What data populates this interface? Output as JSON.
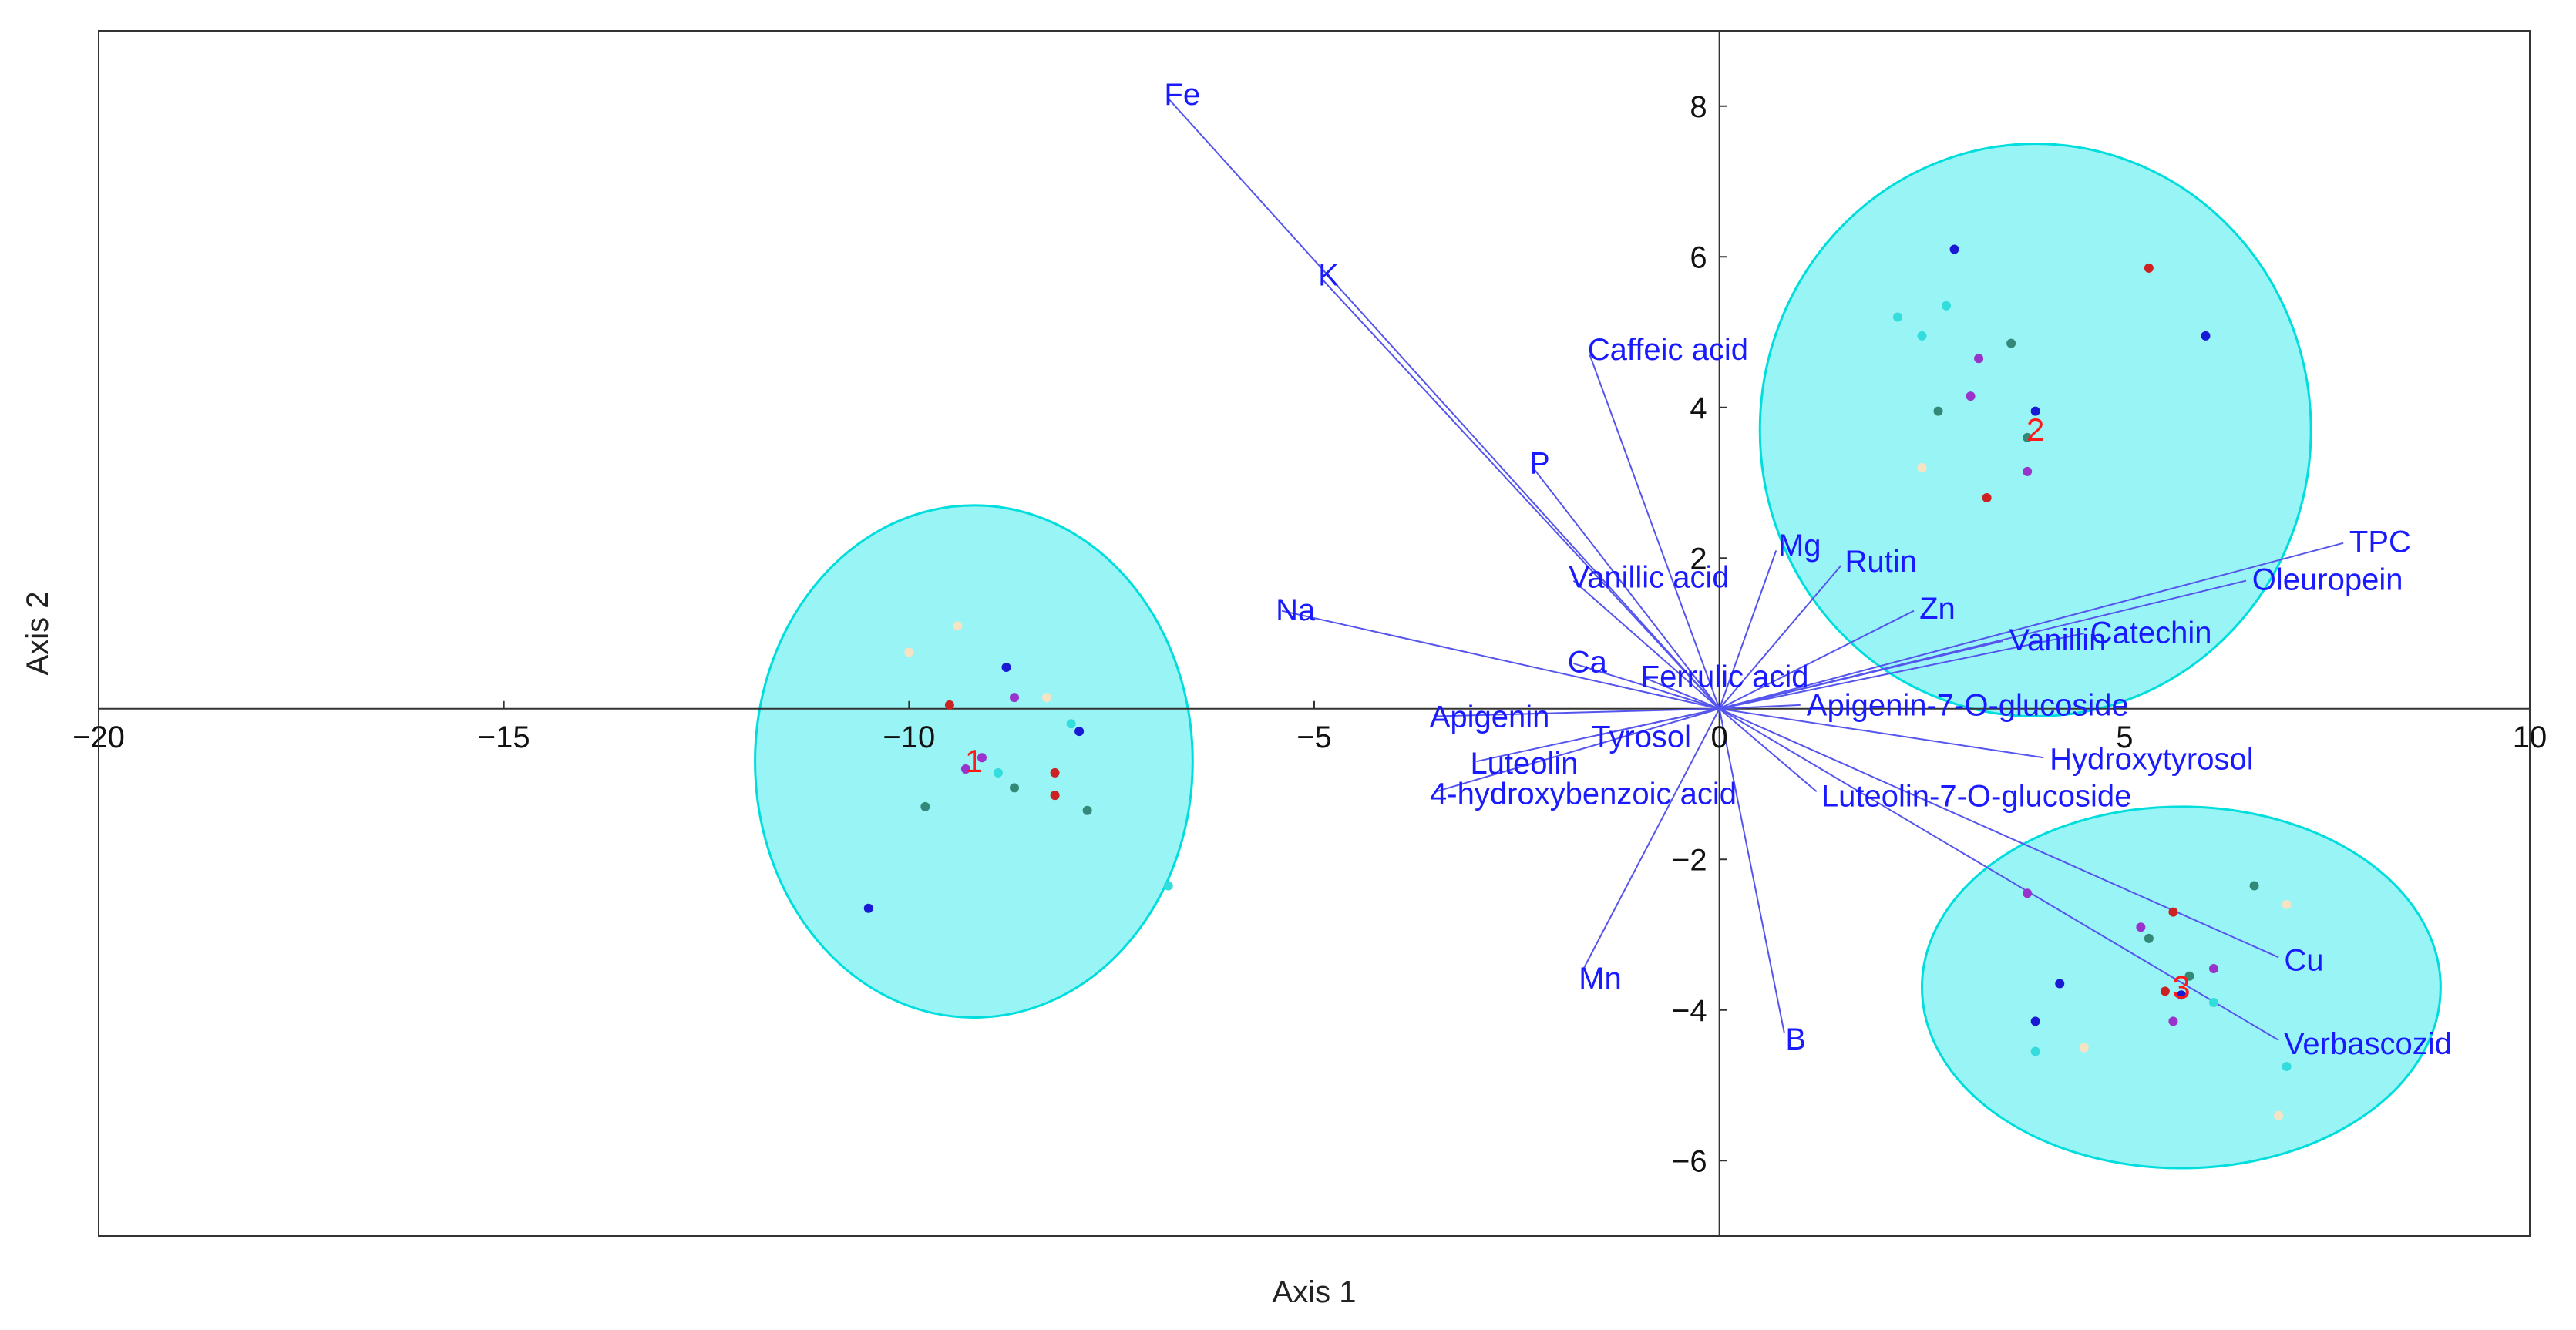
{
  "chart_data": {
    "type": "scatter",
    "subtype": "pca-biplot",
    "title": "",
    "xlabel": "Axis 1",
    "ylabel": "Axis 2",
    "xlim": [
      -20,
      10
    ],
    "ylim": [
      -7,
      9
    ],
    "xticks": [
      -20,
      -15,
      -10,
      -5,
      0,
      5,
      10
    ],
    "yticks": [
      -6,
      -4,
      -2,
      2,
      4,
      6,
      8
    ],
    "zero_lines": true,
    "grid": false,
    "colors": {
      "vectors": "#5555ee",
      "vector_labels": "#1a1aff",
      "ellipse_fill": "#99f5f5",
      "ellipse_stroke": "#00dddd",
      "cluster_labels": "#ff1a1a",
      "axis": "#333333"
    },
    "vectors": [
      {
        "label": "Fe",
        "x": -6.8,
        "y": 8.1
      },
      {
        "label": "K",
        "x": -4.9,
        "y": 5.7
      },
      {
        "label": "P",
        "x": -2.3,
        "y": 3.2
      },
      {
        "label": "Caffeic acid",
        "x": -1.6,
        "y": 4.7
      },
      {
        "label": "Vanillic acid",
        "x": -1.8,
        "y": 1.7
      },
      {
        "label": "Na",
        "x": -5.4,
        "y": 1.3
      },
      {
        "label": "Ca",
        "x": -1.8,
        "y": 0.6
      },
      {
        "label": "Ferrulic acid",
        "x": -0.9,
        "y": 0.4
      },
      {
        "label": "Apigenin",
        "x": -3.5,
        "y": -0.1
      },
      {
        "label": "Tyrosol",
        "x": -1.5,
        "y": -0.35
      },
      {
        "label": "Luteolin",
        "x": -3.0,
        "y": -0.7
      },
      {
        "label": "4-hydroxybenzoic acid",
        "x": -3.5,
        "y": -1.1
      },
      {
        "label": "Mn",
        "x": -1.7,
        "y": -3.5
      },
      {
        "label": "B",
        "x": 0.8,
        "y": -4.3
      },
      {
        "label": "Mg",
        "x": 0.7,
        "y": 2.1
      },
      {
        "label": "Rutin",
        "x": 1.5,
        "y": 1.9
      },
      {
        "label": "Zn",
        "x": 2.4,
        "y": 1.3
      },
      {
        "label": "Vanillin",
        "x": 3.5,
        "y": 0.9
      },
      {
        "label": "Catechin",
        "x": 4.5,
        "y": 1.0
      },
      {
        "label": "Oleuropein",
        "x": 6.5,
        "y": 1.7
      },
      {
        "label": "TPC",
        "x": 7.7,
        "y": 2.2
      },
      {
        "label": "Apigenin-7-O-glucoside",
        "x": 1.0,
        "y": 0.05
      },
      {
        "label": "Hydroxytyrosol",
        "x": 4.0,
        "y": -0.65
      },
      {
        "label": "Luteolin-7-O-glucoside",
        "x": 1.2,
        "y": -1.1
      },
      {
        "label": "Cu",
        "x": 6.9,
        "y": -3.3
      },
      {
        "label": "Verbascozid",
        "x": 6.9,
        "y": -4.4
      }
    ],
    "clusters": [
      {
        "label": "1",
        "cx": -9.2,
        "cy": -0.7,
        "rx": 2.7,
        "ry": 3.4
      },
      {
        "label": "2",
        "cx": 3.9,
        "cy": 3.7,
        "rx": 3.4,
        "ry": 3.8
      },
      {
        "label": "3",
        "cx": 5.7,
        "cy": -3.7,
        "rx": 3.2,
        "ry": 2.4
      }
    ],
    "points": [
      {
        "x": -10.0,
        "y": 0.75,
        "color": "#f5e3c3"
      },
      {
        "x": -9.4,
        "y": 1.1,
        "color": "#f5e3c3"
      },
      {
        "x": -9.5,
        "y": 0.05,
        "color": "#cc2222"
      },
      {
        "x": -8.8,
        "y": 0.55,
        "color": "#1a1ad4"
      },
      {
        "x": -8.7,
        "y": 0.15,
        "color": "#9933cc"
      },
      {
        "x": -8.3,
        "y": 0.15,
        "color": "#f5e3c3"
      },
      {
        "x": -8.0,
        "y": -0.2,
        "color": "#33dddd"
      },
      {
        "x": -7.9,
        "y": -0.3,
        "color": "#1a1ad4"
      },
      {
        "x": -9.1,
        "y": -0.65,
        "color": "#9933cc"
      },
      {
        "x": -9.3,
        "y": -0.8,
        "color": "#9933cc"
      },
      {
        "x": -8.9,
        "y": -0.85,
        "color": "#33dddd"
      },
      {
        "x": -8.2,
        "y": -0.85,
        "color": "#cc2222"
      },
      {
        "x": -8.7,
        "y": -1.05,
        "color": "#338877"
      },
      {
        "x": -8.2,
        "y": -1.15,
        "color": "#cc2222"
      },
      {
        "x": -9.8,
        "y": -1.3,
        "color": "#338877"
      },
      {
        "x": -7.8,
        "y": -1.35,
        "color": "#338877"
      },
      {
        "x": -10.5,
        "y": -2.65,
        "color": "#1a1ad4"
      },
      {
        "x": -6.8,
        "y": -2.35,
        "color": "#33dddd"
      },
      {
        "x": 2.9,
        "y": 6.1,
        "color": "#1a1ad4"
      },
      {
        "x": 5.3,
        "y": 5.85,
        "color": "#cc2222"
      },
      {
        "x": 2.2,
        "y": 5.2,
        "color": "#33dddd"
      },
      {
        "x": 2.8,
        "y": 5.35,
        "color": "#33dddd"
      },
      {
        "x": 2.5,
        "y": 4.95,
        "color": "#33dddd"
      },
      {
        "x": 3.6,
        "y": 4.85,
        "color": "#338877"
      },
      {
        "x": 6.0,
        "y": 4.95,
        "color": "#1a1ad4"
      },
      {
        "x": 3.2,
        "y": 4.65,
        "color": "#9933cc"
      },
      {
        "x": 3.1,
        "y": 4.15,
        "color": "#9933cc"
      },
      {
        "x": 3.9,
        "y": 3.95,
        "color": "#1a1ad4"
      },
      {
        "x": 2.7,
        "y": 3.95,
        "color": "#338877"
      },
      {
        "x": 3.8,
        "y": 3.6,
        "color": "#338877"
      },
      {
        "x": 2.5,
        "y": 3.2,
        "color": "#f5e3c3"
      },
      {
        "x": 3.8,
        "y": 3.15,
        "color": "#9933cc"
      },
      {
        "x": 3.3,
        "y": 2.8,
        "color": "#cc2222"
      },
      {
        "x": 6.6,
        "y": -2.35,
        "color": "#338877"
      },
      {
        "x": 7.0,
        "y": -2.6,
        "color": "#f5e3c3"
      },
      {
        "x": 3.8,
        "y": -2.45,
        "color": "#9933cc"
      },
      {
        "x": 5.6,
        "y": -2.7,
        "color": "#cc2222"
      },
      {
        "x": 5.2,
        "y": -2.9,
        "color": "#9933cc"
      },
      {
        "x": 5.3,
        "y": -3.05,
        "color": "#338877"
      },
      {
        "x": 6.1,
        "y": -3.45,
        "color": "#9933cc"
      },
      {
        "x": 5.8,
        "y": -3.55,
        "color": "#338877"
      },
      {
        "x": 4.2,
        "y": -3.65,
        "color": "#1a1ad4"
      },
      {
        "x": 5.5,
        "y": -3.75,
        "color": "#cc2222"
      },
      {
        "x": 5.7,
        "y": -3.8,
        "color": "#1a1ad4"
      },
      {
        "x": 6.1,
        "y": -3.9,
        "color": "#33dddd"
      },
      {
        "x": 3.9,
        "y": -4.15,
        "color": "#1a1ad4"
      },
      {
        "x": 5.6,
        "y": -4.15,
        "color": "#9933cc"
      },
      {
        "x": 3.9,
        "y": -4.55,
        "color": "#33dddd"
      },
      {
        "x": 4.5,
        "y": -4.5,
        "color": "#f5e3c3"
      },
      {
        "x": 7.0,
        "y": -4.75,
        "color": "#33dddd"
      },
      {
        "x": 6.9,
        "y": -5.4,
        "color": "#f5e3c3"
      }
    ]
  }
}
